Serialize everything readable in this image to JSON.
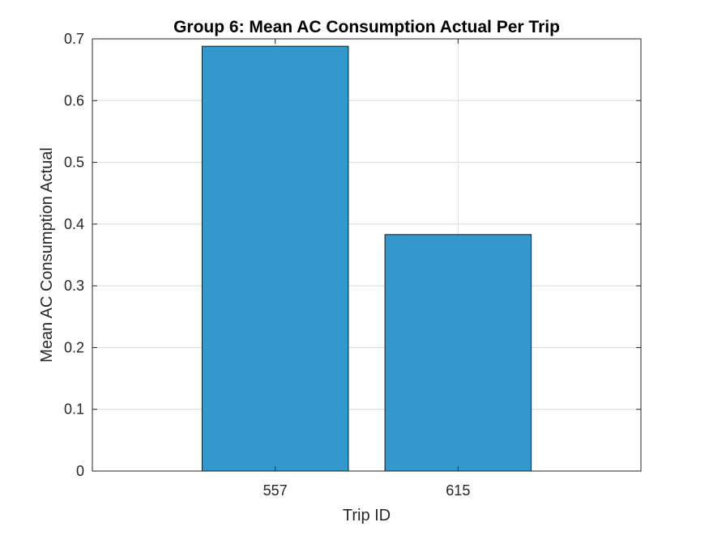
{
  "chart_data": {
    "type": "bar",
    "title": "Group 6: Mean AC Consumption Actual Per Trip",
    "xlabel": "Trip ID",
    "ylabel": "Mean AC Consumption Actual",
    "categories": [
      "557",
      "615"
    ],
    "values": [
      0.688,
      0.383
    ],
    "ylim": [
      0,
      0.7
    ],
    "yticks": [
      0,
      0.1,
      0.2,
      0.3,
      0.4,
      0.5,
      0.6,
      0.7
    ],
    "ytick_labels": [
      "0",
      "0.1",
      "0.2",
      "0.3",
      "0.4",
      "0.5",
      "0.6",
      "0.7"
    ],
    "grid": true,
    "legend": "none",
    "bar_color": "#3399cc"
  }
}
